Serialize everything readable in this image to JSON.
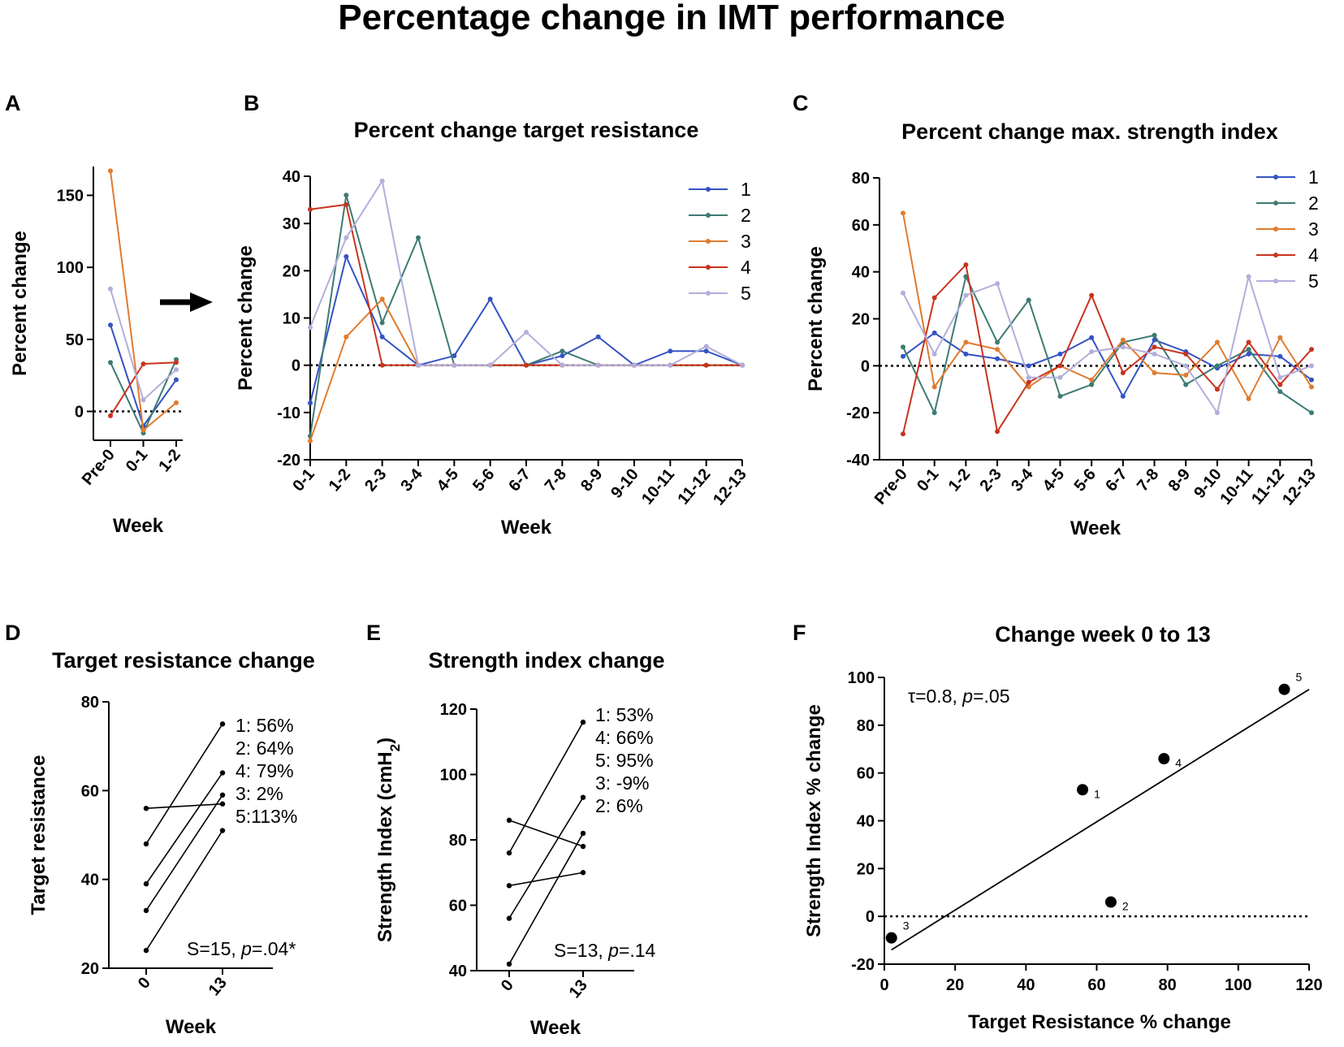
{
  "figure": {
    "title": "Percentage change in IMT performance",
    "panel_labels": [
      "A",
      "B",
      "C",
      "D",
      "E",
      "F"
    ],
    "arrow": "right-arrow"
  },
  "colors": {
    "1": "#3553c4",
    "2": "#3d7b73",
    "3": "#e07b2e",
    "4": "#c8341f",
    "5": "#b3aedb",
    "axis": "#000000"
  },
  "chart_data": [
    {
      "id": "A",
      "type": "line",
      "title": "",
      "xlabel": "Week",
      "ylabel": "Percent change",
      "categories": [
        "Pre-0",
        "0-1",
        "1-2"
      ],
      "ylim": [
        -20,
        170
      ],
      "yticks": [
        0,
        50,
        100,
        150
      ],
      "zero_line": true,
      "series": [
        {
          "name": "1",
          "values": [
            60,
            -10,
            22
          ]
        },
        {
          "name": "2",
          "values": [
            34,
            -15,
            36
          ]
        },
        {
          "name": "3",
          "values": [
            167,
            -13,
            6
          ]
        },
        {
          "name": "4",
          "values": [
            -3,
            33,
            34
          ]
        },
        {
          "name": "5",
          "values": [
            85,
            8,
            29
          ]
        }
      ]
    },
    {
      "id": "B",
      "type": "line",
      "title": "Percent change target resistance",
      "xlabel": "Week",
      "ylabel": "Percent change",
      "categories": [
        "0-1",
        "1-2",
        "2-3",
        "3-4",
        "4-5",
        "5-6",
        "6-7",
        "7-8",
        "8-9",
        "9-10",
        "10-11",
        "11-12",
        "12-13"
      ],
      "ylim": [
        -20,
        40
      ],
      "yticks": [
        -20,
        -10,
        0,
        10,
        20,
        30,
        40
      ],
      "zero_line": true,
      "legend": [
        "1",
        "2",
        "3",
        "4",
        "5"
      ],
      "series": [
        {
          "name": "1",
          "values": [
            -8,
            23,
            6,
            0,
            2,
            14,
            0,
            2,
            6,
            0,
            3,
            3,
            0
          ]
        },
        {
          "name": "2",
          "values": [
            -15,
            36,
            9,
            27,
            0,
            0,
            0,
            3,
            0,
            0,
            0,
            0,
            0
          ]
        },
        {
          "name": "3",
          "values": [
            -16,
            6,
            14,
            0,
            0,
            0,
            0,
            0,
            0,
            0,
            0,
            0,
            0
          ]
        },
        {
          "name": "4",
          "values": [
            33,
            34,
            0,
            0,
            0,
            0,
            0,
            0,
            0,
            0,
            0,
            0,
            0
          ]
        },
        {
          "name": "5",
          "values": [
            8,
            27,
            39,
            0,
            0,
            0,
            7,
            0,
            0,
            0,
            0,
            4,
            0
          ]
        }
      ]
    },
    {
      "id": "C",
      "type": "line",
      "title": "Percent change max. strength index",
      "xlabel": "Week",
      "ylabel": "Percent change",
      "categories": [
        "Pre-0",
        "0-1",
        "1-2",
        "2-3",
        "3-4",
        "4-5",
        "5-6",
        "6-7",
        "7-8",
        "8-9",
        "9-10",
        "10-11",
        "11-12",
        "12-13"
      ],
      "ylim": [
        -40,
        80
      ],
      "yticks": [
        -40,
        -20,
        0,
        20,
        40,
        60,
        80
      ],
      "zero_line": true,
      "legend": [
        "1",
        "2",
        "3",
        "4",
        "5"
      ],
      "series": [
        {
          "name": "1",
          "values": [
            4,
            14,
            5,
            3,
            0,
            5,
            12,
            -13,
            11,
            6,
            -1,
            5,
            4,
            -6
          ]
        },
        {
          "name": "2",
          "values": [
            8,
            -20,
            38,
            10,
            28,
            -13,
            -8,
            10,
            13,
            -8,
            0,
            7,
            -11,
            -20
          ]
        },
        {
          "name": "3",
          "values": [
            65,
            -9,
            10,
            7,
            -9,
            0,
            -6,
            11,
            -3,
            -4,
            10,
            -14,
            12,
            -9
          ]
        },
        {
          "name": "4",
          "values": [
            -29,
            29,
            43,
            -28,
            -7,
            0,
            30,
            -3,
            8,
            5,
            -10,
            10,
            -8,
            7
          ]
        },
        {
          "name": "5",
          "values": [
            31,
            5,
            30,
            35,
            -5,
            -5,
            6,
            8,
            5,
            0,
            -20,
            38,
            -5,
            0
          ]
        }
      ]
    },
    {
      "id": "D",
      "type": "line",
      "title": "Target resistance change",
      "xlabel": "Week",
      "ylabel": "Target resistance",
      "categories": [
        "0",
        "13"
      ],
      "ylim": [
        20,
        80
      ],
      "yticks": [
        20,
        40,
        60,
        80
      ],
      "series": [
        {
          "name": "1",
          "values": [
            48,
            75
          ],
          "label": "1: 56%"
        },
        {
          "name": "2",
          "values": [
            39,
            64
          ],
          "label": "2: 64%"
        },
        {
          "name": "3",
          "values": [
            56,
            57
          ],
          "label": "3:  2%"
        },
        {
          "name": "4",
          "values": [
            33,
            59
          ],
          "label": "4: 79%"
        },
        {
          "name": "5",
          "values": [
            24,
            51
          ],
          "label": "5:113%"
        }
      ],
      "label_order": [
        "1",
        "2",
        "4",
        "3",
        "5"
      ],
      "stat_text": "S=15, ",
      "stat_p": "p",
      "stat_rest": "=.04*"
    },
    {
      "id": "E",
      "type": "line",
      "title": "Strength index change",
      "xlabel": "Week",
      "ylabel": "Strength Index (cmH",
      "ylabel_sub": "2",
      "ylabel_end": ")",
      "categories": [
        "0",
        "13"
      ],
      "ylim": [
        40,
        120
      ],
      "yticks": [
        40,
        60,
        80,
        100,
        120
      ],
      "series": [
        {
          "name": "1",
          "values": [
            76,
            116
          ],
          "label": "1: 53%"
        },
        {
          "name": "2",
          "values": [
            66,
            70
          ],
          "label": "2:   6%"
        },
        {
          "name": "3",
          "values": [
            86,
            78
          ],
          "label": "3:  -9%"
        },
        {
          "name": "4",
          "values": [
            56,
            93
          ],
          "label": "4: 66%"
        },
        {
          "name": "5",
          "values": [
            42,
            82
          ],
          "label": "5: 95%"
        }
      ],
      "label_order": [
        "1",
        "4",
        "5",
        "3",
        "2"
      ],
      "stat_text": "S=13, ",
      "stat_p": "p",
      "stat_rest": "=.14"
    },
    {
      "id": "F",
      "type": "scatter",
      "title": "Change week 0 to 13",
      "xlabel": "Target Resistance % change",
      "ylabel": "Strength Index % change",
      "xlim": [
        0,
        120
      ],
      "ylim": [
        -20,
        100
      ],
      "xticks": [
        0,
        20,
        40,
        60,
        80,
        100,
        120
      ],
      "yticks": [
        -20,
        0,
        20,
        40,
        60,
        80,
        100
      ],
      "zero_line": true,
      "points": [
        {
          "label": "1",
          "x": 56,
          "y": 53
        },
        {
          "label": "2",
          "x": 64,
          "y": 6
        },
        {
          "label": "3",
          "x": 2,
          "y": -9
        },
        {
          "label": "4",
          "x": 79,
          "y": 66
        },
        {
          "label": "5",
          "x": 113,
          "y": 95
        }
      ],
      "fit_line": {
        "x": [
          2,
          120
        ],
        "y": [
          -14,
          95
        ]
      },
      "stat_tau": "τ=0.8, ",
      "stat_p": "p",
      "stat_rest": "=.05"
    }
  ]
}
